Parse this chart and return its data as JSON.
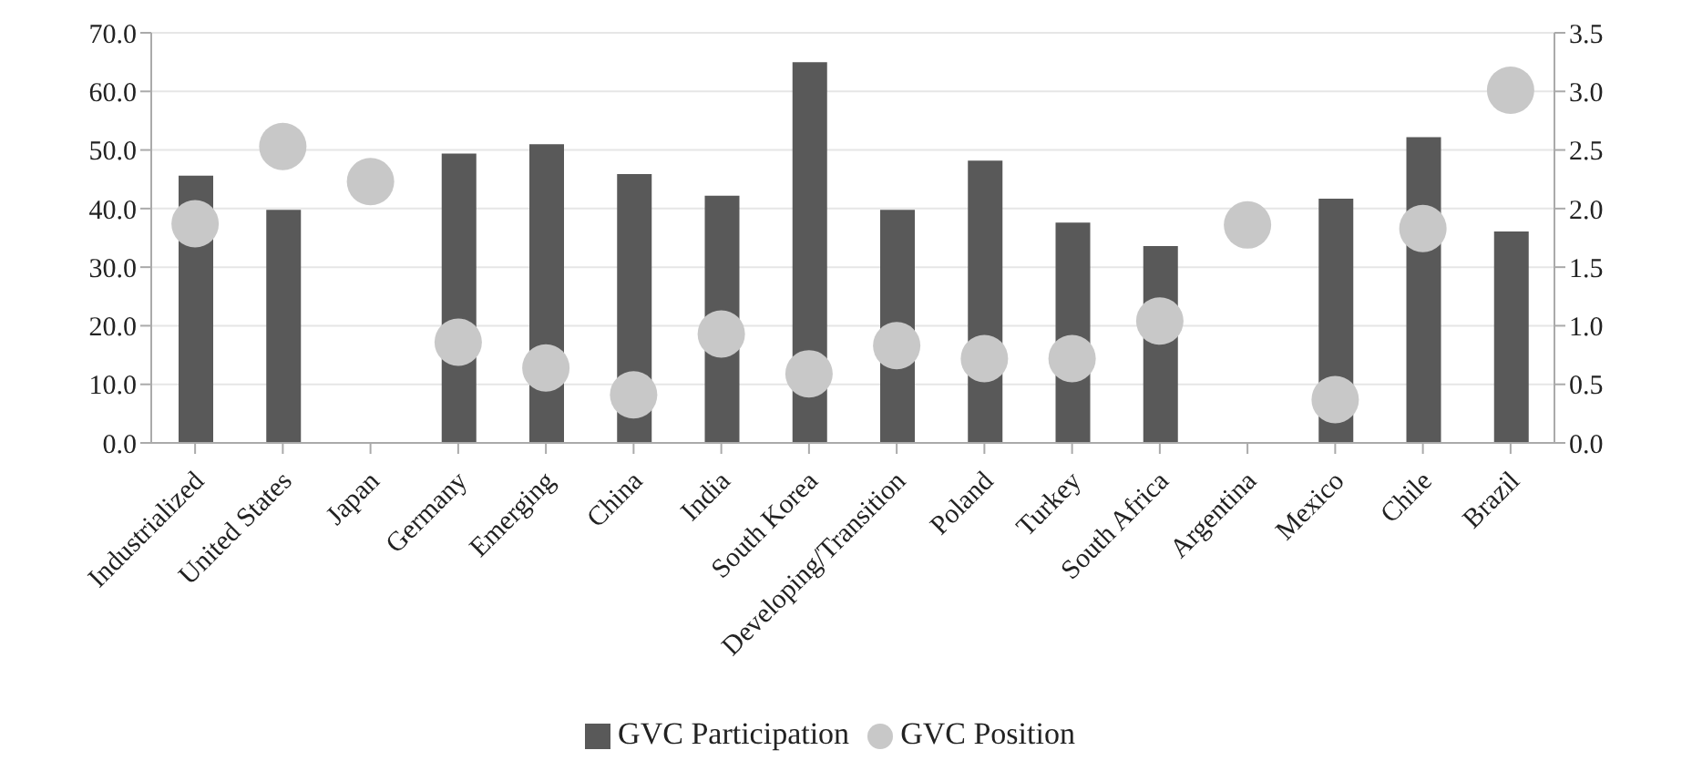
{
  "chart_data": {
    "type": "bar",
    "categories": [
      "Industrialized",
      "United States",
      "Japan",
      "Germany",
      "Emerging",
      "China",
      "India",
      "South Korea",
      "Developing/Transition",
      "Poland",
      "Turkey",
      "South Africa",
      "Argentina",
      "Mexico",
      "Chile",
      "Brazil"
    ],
    "series": [
      {
        "name": "GVC Participation",
        "color": "#595959",
        "values": [
          45.6,
          39.8,
          null,
          49.4,
          51.0,
          45.9,
          42.2,
          65.0,
          39.8,
          48.2,
          37.6,
          33.6,
          null,
          41.7,
          52.2,
          36.1
        ]
      },
      {
        "name": "GVC Position",
        "type": "scatter",
        "axis": "y2",
        "color": "#c8c8c8",
        "values": [
          1.87,
          2.53,
          2.23,
          0.86,
          0.64,
          0.41,
          0.93,
          0.59,
          0.83,
          0.72,
          0.72,
          1.04,
          1.86,
          0.37,
          1.83,
          3.01
        ]
      }
    ],
    "ylim": [
      0,
      70
    ],
    "yticks": [
      {
        "value": 0,
        "label": "0.0"
      },
      {
        "value": 10,
        "label": "10.0"
      },
      {
        "value": 20,
        "label": "20.0"
      },
      {
        "value": 30,
        "label": "30.0"
      },
      {
        "value": 40,
        "label": "40.0"
      },
      {
        "value": 50,
        "label": "50.0"
      },
      {
        "value": 60,
        "label": "60.0"
      },
      {
        "value": 70,
        "label": "70.0"
      }
    ],
    "y2lim": [
      0,
      3.5
    ],
    "y2ticks": [
      {
        "value": 0,
        "label": "0.0"
      },
      {
        "value": 0.5,
        "label": "0.5"
      },
      {
        "value": 1,
        "label": "1.0"
      },
      {
        "value": 1.5,
        "label": "1.5"
      },
      {
        "value": 2,
        "label": "2.0"
      },
      {
        "value": 2.5,
        "label": "2.5"
      },
      {
        "value": 3,
        "label": "3.0"
      },
      {
        "value": 3.5,
        "label": "3.5"
      }
    ],
    "grid": "y",
    "legend": "bottom",
    "marker": "circle"
  }
}
